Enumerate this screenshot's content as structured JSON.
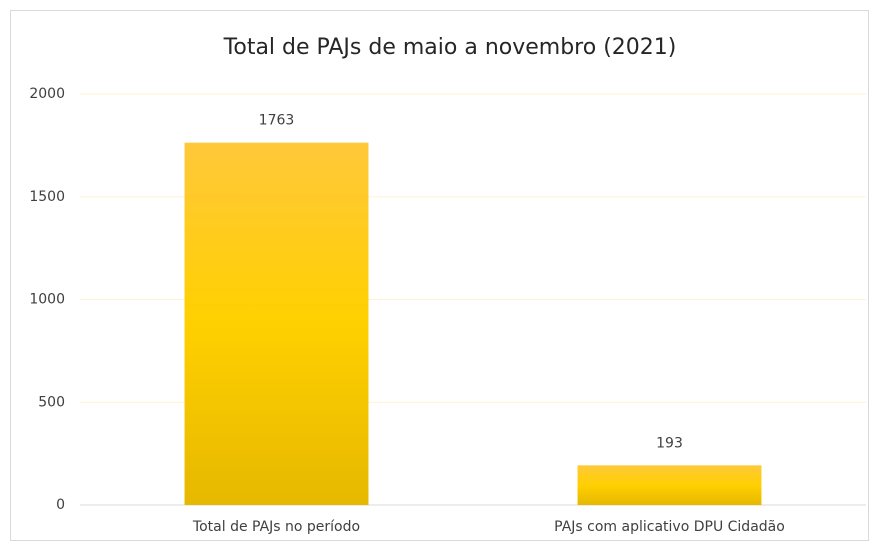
{
  "chart_data": {
    "type": "bar",
    "title": "Total de PAJs de maio a novembro  (2021)",
    "categories": [
      "Total de PAJs no período",
      "PAJs com aplicativo DPU Cidadão"
    ],
    "values": [
      1763,
      193
    ],
    "color": "#ffd000",
    "ylim": [
      0,
      2000
    ],
    "yticks": [
      0,
      500,
      1000,
      1500,
      2000
    ],
    "grid": true
  }
}
